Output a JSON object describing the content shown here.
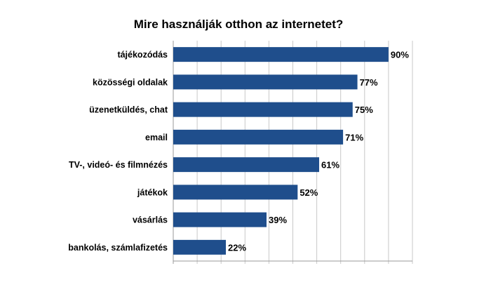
{
  "chart_data": {
    "type": "bar",
    "orientation": "horizontal",
    "title": "Mire használják otthon az internetet?",
    "categories": [
      "tájékozódás",
      "közösségi oldalak",
      "üzenetküldés, chat",
      "email",
      "TV-, videó- és filmnézés",
      "játékok",
      "vásárlás",
      "bankolás, számlafizetés"
    ],
    "values": [
      90,
      77,
      75,
      71,
      61,
      52,
      39,
      22
    ],
    "data_labels": [
      "90%",
      "77%",
      "75%",
      "71%",
      "61%",
      "52%",
      "39%",
      "22%"
    ],
    "unit": "%",
    "xlim": [
      0,
      100
    ],
    "grid": true,
    "legend": "none",
    "bar_color": "#1f4e8c"
  }
}
